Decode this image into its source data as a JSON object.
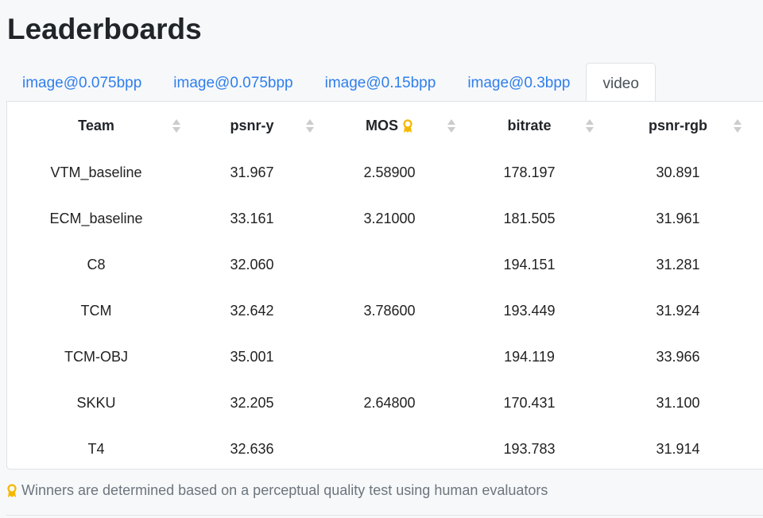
{
  "page": {
    "title": "Leaderboards"
  },
  "tabs": [
    {
      "label": "image@0.075bpp",
      "active": false
    },
    {
      "label": "image@0.075bpp",
      "active": false
    },
    {
      "label": "image@0.15bpp",
      "active": false
    },
    {
      "label": "image@0.3bpp",
      "active": false
    },
    {
      "label": "video",
      "active": true
    }
  ],
  "table": {
    "columns": [
      "Team",
      "psnr-y",
      "MOS",
      "bitrate",
      "psnr-rgb"
    ],
    "mos_icon": "award-ribbon-icon",
    "rows": [
      [
        "VTM_baseline",
        "31.967",
        "2.58900",
        "178.197",
        "30.891"
      ],
      [
        "ECM_baseline",
        "33.161",
        "3.21000",
        "181.505",
        "31.961"
      ],
      [
        "C8",
        "32.060",
        "",
        "194.151",
        "31.281"
      ],
      [
        "TCM",
        "32.642",
        "3.78600",
        "193.449",
        "31.924"
      ],
      [
        "TCM-OBJ",
        "35.001",
        "",
        "194.119",
        "33.966"
      ],
      [
        "SKKU",
        "32.205",
        "2.64800",
        "170.431",
        "31.100"
      ],
      [
        "T4",
        "32.636",
        "",
        "193.783",
        "31.914"
      ]
    ]
  },
  "note": "Winners are determined based on a perceptual quality test using human evaluators",
  "colors": {
    "link": "#2f7fec",
    "award": "#f5b800"
  }
}
